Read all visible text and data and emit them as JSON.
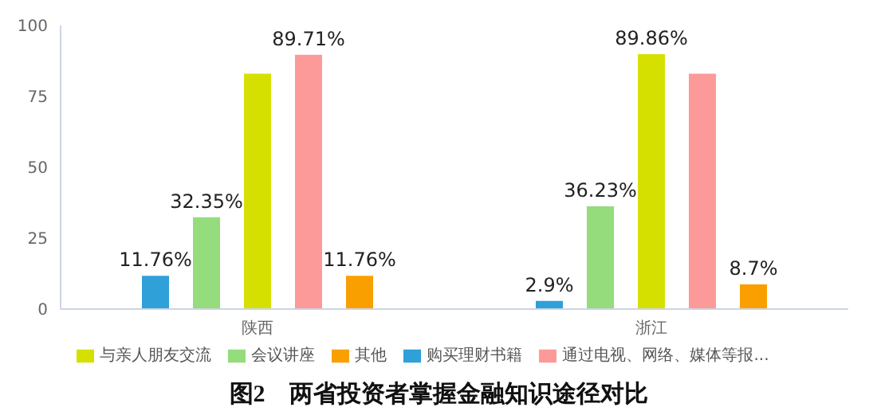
{
  "chart_data": {
    "type": "bar",
    "title": "图2　两省投资者掌握金融知识途径对比",
    "categories": [
      "陕西",
      "浙江"
    ],
    "series": [
      {
        "name": "购买理财书籍",
        "color": "#2fa0d8",
        "values": [
          11.76,
          2.9
        ],
        "value_labels": [
          "11.76%",
          "2.9%"
        ]
      },
      {
        "name": "会议讲座",
        "color": "#94dc7c",
        "values": [
          32.35,
          36.23
        ],
        "value_labels": [
          "32.35%",
          "36.23%"
        ]
      },
      {
        "name": "与亲人朋友交流",
        "color": "#d6e000",
        "values": [
          83,
          89.86
        ],
        "value_labels": [
          null,
          "89.86%"
        ]
      },
      {
        "name": "通过电视、网络、媒体等报...",
        "color": "#fc9a9a",
        "values": [
          89.71,
          83
        ],
        "value_labels": [
          "89.71%",
          null
        ]
      },
      {
        "name": "其他",
        "color": "#f9a000",
        "values": [
          11.76,
          8.7
        ],
        "value_labels": [
          "11.76%",
          "8.7%"
        ]
      }
    ],
    "ylim": [
      0,
      100
    ],
    "yticks": [
      0,
      25,
      50,
      75,
      100
    ],
    "grid": false,
    "legend": "bottom"
  }
}
